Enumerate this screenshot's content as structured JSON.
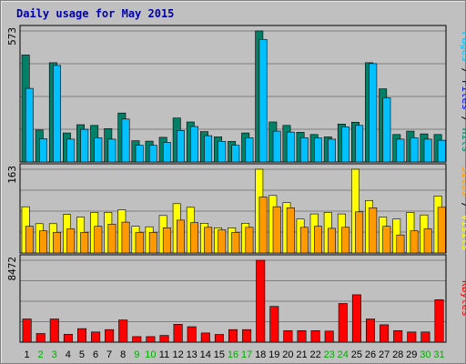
{
  "chart_data": {
    "type": "bar",
    "title": "Daily usage for May 2015",
    "categories": [
      "1",
      "2",
      "3",
      "4",
      "5",
      "6",
      "7",
      "8",
      "9",
      "10",
      "11",
      "12",
      "13",
      "14",
      "15",
      "16",
      "17",
      "18",
      "19",
      "20",
      "21",
      "22",
      "23",
      "24",
      "25",
      "26",
      "27",
      "28",
      "29",
      "30",
      "31"
    ],
    "weekend_days": [
      "2",
      "3",
      "9",
      "10",
      "16",
      "17",
      "23",
      "24",
      "30",
      "31"
    ],
    "panels": [
      {
        "name": "hits-files-pages",
        "max_label": "573",
        "ylim": [
          0,
          573
        ],
        "legend": [
          "Pages",
          "Files",
          "Hits"
        ],
        "series": [
          {
            "name": "Hits",
            "color": "#008066",
            "values": [
              468,
              140,
              434,
              127,
              163,
              160,
              146,
              214,
              93,
              91,
              108,
              192,
              175,
              133,
              110,
              90,
              127,
              573,
              175,
              160,
              130,
              120,
              110,
              166,
              174,
              434,
              320,
              120,
              135,
              123,
              120
            ]
          },
          {
            "name": "Files",
            "color": "#00c0ff",
            "values": [
              322,
              102,
              422,
              100,
              143,
              106,
              100,
              188,
              73,
              73,
              86,
              138,
              155,
              115,
              90,
              73,
              106,
              536,
              135,
              131,
              106,
              105,
              100,
              153,
              160,
              430,
              280,
              100,
              106,
              100,
              95
            ]
          },
          {
            "name": "Pages",
            "color": "#00e0ff",
            "values": [
              0,
              0,
              0,
              0,
              0,
              0,
              0,
              0,
              0,
              0,
              0,
              0,
              0,
              0,
              0,
              0,
              0,
              0,
              0,
              0,
              0,
              0,
              0,
              0,
              0,
              0,
              0,
              0,
              0,
              0,
              0
            ]
          }
        ]
      },
      {
        "name": "visits-sites",
        "max_label": "163",
        "ylim": [
          0,
          163
        ],
        "legend": [
          "Sites",
          "Visits"
        ],
        "series": [
          {
            "name": "Visits",
            "color": "#ffff00",
            "values": [
              90,
              57,
              57,
              75,
              70,
              79,
              79,
              84,
              52,
              51,
              73,
              96,
              89,
              58,
              49,
              49,
              58,
              163,
              112,
              98,
              66,
              76,
              79,
              76,
              163,
              102,
              70,
              66,
              79,
              74,
              111
            ]
          },
          {
            "name": "Sites",
            "color": "#ff9900",
            "values": [
              52,
              43,
              40,
              47,
              40,
              52,
              56,
              60,
              40,
              40,
              49,
              64,
              59,
              50,
              45,
              40,
              50,
              109,
              90,
              88,
              50,
              52,
              48,
              50,
              80,
              88,
              52,
              35,
              43,
              47,
              89
            ]
          }
        ]
      },
      {
        "name": "kbytes",
        "max_label": "8472",
        "ylim": [
          0,
          8472
        ],
        "legend": [
          "KBytes"
        ],
        "series": [
          {
            "name": "KBytes",
            "color": "#ff0000",
            "values": [
              2400,
              890,
              2400,
              810,
              1400,
              1050,
              1300,
              2300,
              570,
              570,
              700,
              1850,
              1600,
              950,
              800,
              1300,
              1300,
              8472,
              3700,
              1200,
              1200,
              1200,
              1150,
              4000,
              4900,
              2400,
              1800,
              1200,
              1050,
              1050,
              4400
            ]
          }
        ]
      }
    ]
  },
  "colors": {
    "background": "#c0c0c0",
    "gridline": "#808080",
    "title": "#0000aa",
    "weekday_label": "#000000",
    "weekend_label": "#00aa00",
    "pages_legend": "#00c0ff",
    "files_legend": "#0000ff",
    "hits_legend": "#008066",
    "sites_legend": "#ff9900",
    "visits_legend": "#ffff00",
    "kbytes_legend": "#ff0000",
    "separator": "#000000"
  }
}
